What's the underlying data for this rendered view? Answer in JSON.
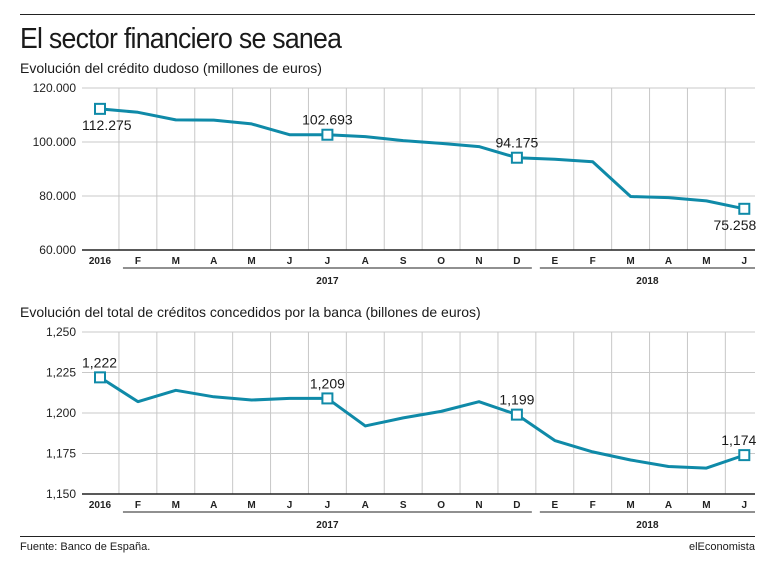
{
  "title": "El sector financiero se sanea",
  "footer": {
    "source": "Fuente: Banco de España.",
    "brand": "elEconomista"
  },
  "colors": {
    "line": "#0f8aa8",
    "grid": "#c8c8c8",
    "axis": "#222222"
  },
  "chart_data": [
    {
      "type": "line",
      "title": "Evolución del crédito dudoso (millones de euros)",
      "categories": [
        "2016",
        "F",
        "M",
        "A",
        "M",
        "J",
        "J",
        "A",
        "S",
        "O",
        "N",
        "D",
        "E",
        "F",
        "M",
        "A",
        "M",
        "J"
      ],
      "year_labels": [
        "2017",
        "2018"
      ],
      "yticks": [
        "120.000",
        "100.000",
        "80.000",
        "60.000"
      ],
      "ylim": [
        60000,
        120000
      ],
      "grid": true,
      "series": [
        {
          "values": [
            112275,
            111000,
            108200,
            108100,
            106700,
            102700,
            102693,
            102000,
            100500,
            99500,
            98300,
            94175,
            93600,
            92700,
            79800,
            79400,
            78200,
            75258
          ],
          "marker_indices": [
            0,
            6,
            11,
            17
          ],
          "marker_labels": [
            "112.275",
            "102.693",
            "94.175",
            "75.258"
          ]
        }
      ]
    },
    {
      "type": "line",
      "title": "Evolución del total de créditos concedidos por la banca (billones de euros)",
      "categories": [
        "2016",
        "F",
        "M",
        "A",
        "M",
        "J",
        "J",
        "A",
        "S",
        "O",
        "N",
        "D",
        "E",
        "F",
        "M",
        "A",
        "M",
        "J"
      ],
      "year_labels": [
        "2017",
        "2018"
      ],
      "yticks": [
        "1,250",
        "1,225",
        "1,200",
        "1,175",
        "1,150"
      ],
      "ylim": [
        1.15,
        1.25
      ],
      "grid": true,
      "series": [
        {
          "values": [
            1.222,
            1.207,
            1.214,
            1.21,
            1.208,
            1.209,
            1.209,
            1.192,
            1.197,
            1.201,
            1.207,
            1.199,
            1.183,
            1.176,
            1.171,
            1.167,
            1.166,
            1.174
          ],
          "marker_indices": [
            0,
            6,
            11,
            17
          ],
          "marker_labels": [
            "1,222",
            "1,209",
            "1,199",
            "1,174"
          ]
        }
      ]
    }
  ]
}
